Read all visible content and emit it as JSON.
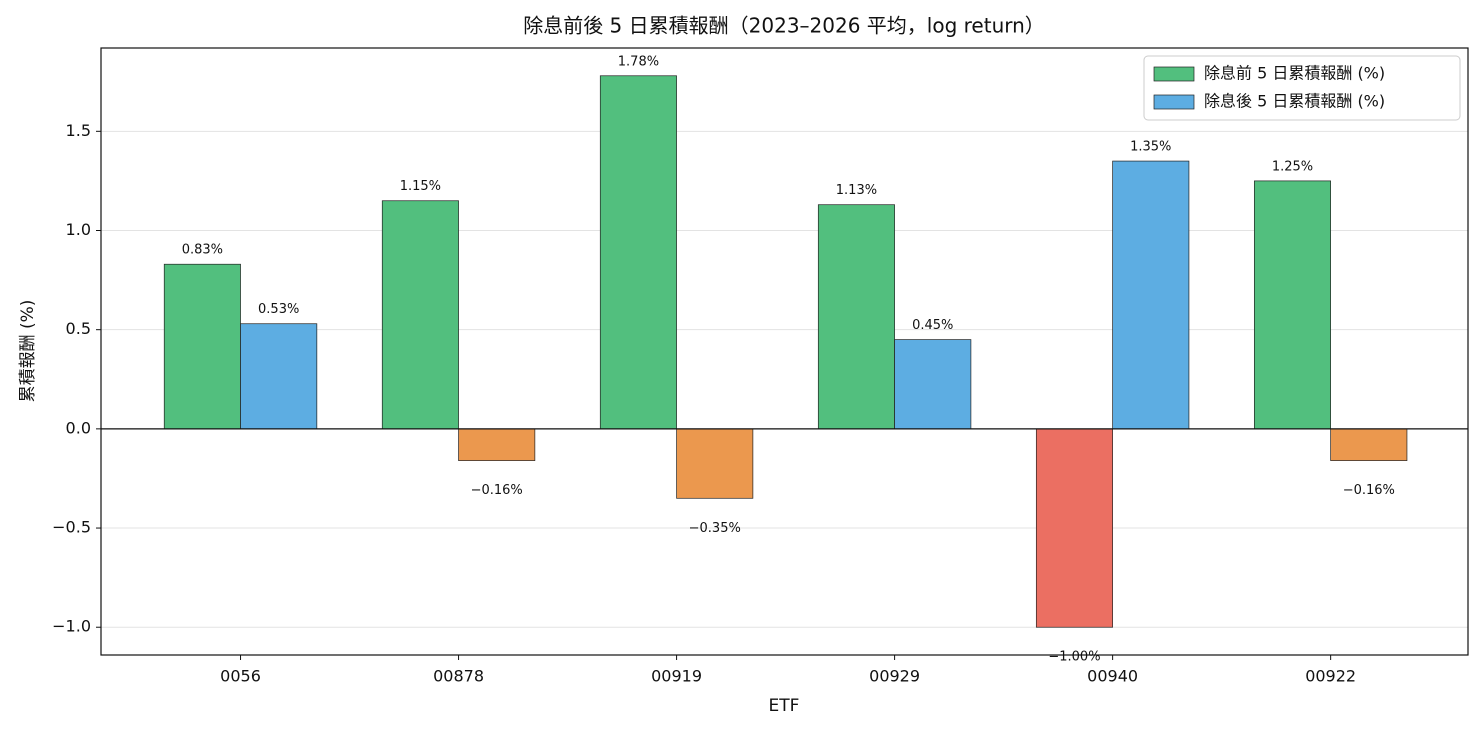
{
  "chart_data": {
    "type": "bar",
    "title": "除息前後 5 日累積報酬（2023–2026 平均，log return）",
    "x_label": "ETF",
    "y_label": "累積報酬 (%)",
    "categories": [
      "0056",
      "00878",
      "00919",
      "00929",
      "00940",
      "00922"
    ],
    "series": [
      {
        "name": "除息前 5 日累積報酬 (%)",
        "color": "#52bf7e",
        "negative_color": "#eb6f62",
        "values": [
          0.83,
          1.15,
          1.78,
          1.13,
          -1.0,
          1.25
        ],
        "value_labels": [
          "0.83%",
          "1.15%",
          "1.78%",
          "1.13%",
          "−1.00%",
          "1.25%"
        ]
      },
      {
        "name": "除息後 5 日累積報酬 (%)",
        "color": "#5dade2",
        "negative_color": "#eb984e",
        "values": [
          0.53,
          -0.16,
          -0.35,
          0.45,
          1.35,
          -0.16
        ],
        "value_labels": [
          "0.53%",
          "−0.16%",
          "−0.35%",
          "0.45%",
          "1.35%",
          "−0.16%"
        ]
      }
    ],
    "ylim": [
      -1.14,
      1.92
    ],
    "yticks": [
      {
        "value": -1.0,
        "label": "−1.0"
      },
      {
        "value": -0.5,
        "label": "−0.5"
      },
      {
        "value": 0.0,
        "label": "0.0"
      },
      {
        "value": 0.5,
        "label": "0.5"
      },
      {
        "value": 1.0,
        "label": "1.0"
      },
      {
        "value": 1.5,
        "label": "1.5"
      }
    ],
    "grid": true,
    "legend": "upper right"
  }
}
